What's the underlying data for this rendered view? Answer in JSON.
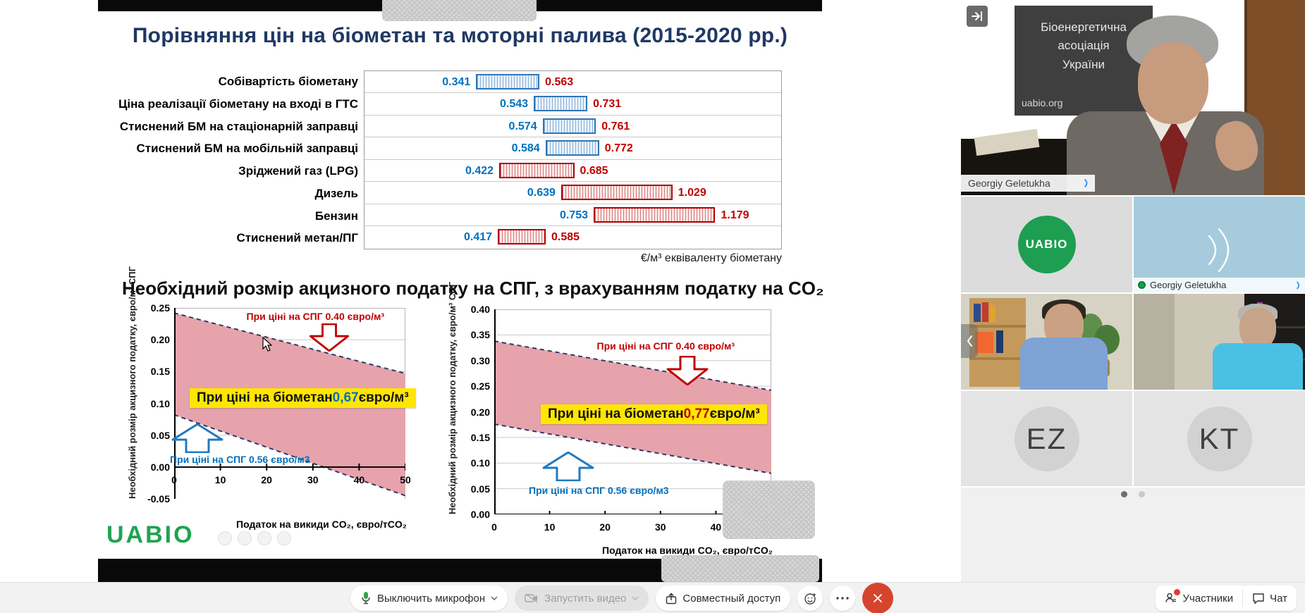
{
  "slide": {
    "title": "Порівняння цін на біометан та моторні палива (2015-2020 рр.)",
    "unit_label": "€/м³ еквіваленту біометану",
    "subtitle": "Необхідний розмір акцизного податку на СПГ, з врахуванням податку на CO₂",
    "logo_text": "UABIO"
  },
  "chart_data": [
    {
      "type": "bar",
      "orientation": "horizontal_range",
      "title": "Порівняння цін на біометан та моторні палива (2015-2020 рр.)",
      "unit": "€/м³ еквіваленту біометану",
      "xlim": [
        -0.05,
        1.41
      ],
      "categories": [
        "Собівартість біометану",
        "Ціна реалізації біометану на вході в ГТС",
        "Стиснений БМ на стаціонарній заправці",
        "Стиснений БМ на мобільній заправці",
        "Зріджений газ (LPG)",
        "Дизель",
        "Бензин",
        "Стиснений метан/ПГ"
      ],
      "series": [
        {
          "name": "min",
          "values": [
            0.341,
            0.543,
            0.574,
            0.584,
            0.422,
            0.639,
            0.753,
            0.417
          ]
        },
        {
          "name": "max",
          "values": [
            0.563,
            0.731,
            0.761,
            0.772,
            0.685,
            1.029,
            1.179,
            0.585
          ]
        }
      ],
      "groups": [
        "biomethane",
        "biomethane",
        "biomethane",
        "biomethane",
        "fossil",
        "fossil",
        "fossil",
        "fossil"
      ],
      "colors": {
        "biomethane_border": "#2E75B6",
        "fossil_border": "#B00000",
        "min_label": "#0070C0",
        "max_label": "#C00000"
      }
    },
    {
      "type": "area",
      "ylabel": "Необхідний розмір акцизного податку, євро/м³ СПГ",
      "xlabel": "Податок на викиди CO₂, євро/тCO₂",
      "ylim": [
        -0.05,
        0.25
      ],
      "ytick_step": 0.05,
      "xticks": [
        0,
        10,
        20,
        30,
        40,
        50
      ],
      "band": {
        "x": [
          0,
          50
        ],
        "upper": [
          0.242,
          0.147
        ],
        "lower": [
          0.082,
          -0.045
        ]
      },
      "band_color": "#E7A3AB",
      "annotations": {
        "top": "При ціні на СПГ 0.40 євро/м³",
        "bottom": "При ціні на СПГ 0.56 євро/м3"
      },
      "callout": {
        "prefix": "При ціні на біометан ",
        "value": "0,67",
        "suffix": " євро/м³",
        "value_color": "#0070C0"
      }
    },
    {
      "type": "area",
      "ylabel": "Необхідний розмір акцизного податку, євро/м³ СПГ",
      "xlabel": "Податок на викиди CO₂, євро/тCO₂",
      "ylim": [
        0,
        0.4
      ],
      "ytick_step": 0.05,
      "xticks": [
        0,
        10,
        20,
        30,
        40,
        50
      ],
      "band": {
        "x": [
          0,
          50
        ],
        "upper": [
          0.338,
          0.242
        ],
        "lower": [
          0.176,
          0.08
        ]
      },
      "band_color": "#E7A3AB",
      "annotations": {
        "top": "При ціні на СПГ 0.40 євро/м³",
        "bottom": "При ціні на СПГ 0.56 євро/м3"
      },
      "callout": {
        "prefix": "При ціні на біометан ",
        "value": "0,77",
        "suffix": " євро/м³",
        "value_color": "#C00000"
      }
    }
  ],
  "meeting": {
    "main_speaker": {
      "name": "Georgiy Geletukha",
      "banner_lines": [
        "Біоенергетична",
        "асоціація",
        "України"
      ],
      "banner_url": "uabio.org"
    },
    "logo_tile": {
      "text": "UABIO"
    },
    "audio_tile": {
      "name": "Georgiy Geletukha"
    },
    "avatar_tiles": [
      {
        "initials": "EZ"
      },
      {
        "initials": "KT"
      }
    ]
  },
  "toolbar": {
    "mute_label": "Выключить микрофон",
    "video_label": "Запустить видео",
    "share_label": "Совместный доступ",
    "participants_label": "Участники",
    "chat_label": "Чат"
  }
}
